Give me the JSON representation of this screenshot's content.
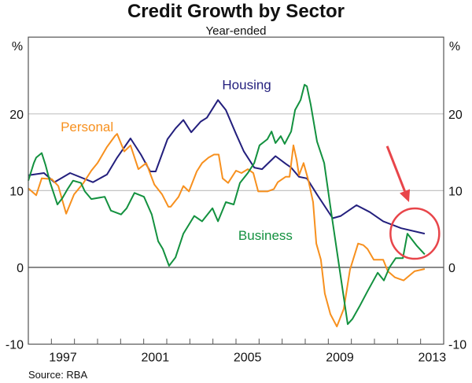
{
  "chart_data": {
    "type": "line",
    "title": "Credit Growth by Sector",
    "subtitle": "Year-ended",
    "ylabel_left": "%",
    "ylabel_right": "%",
    "source": "Source: RBA",
    "xlim": [
      1996,
      2014
    ],
    "ylim": [
      -10,
      30
    ],
    "yticks": [
      -10,
      0,
      10,
      20
    ],
    "ytick_labels": [
      "-10",
      "0",
      "10",
      "20"
    ],
    "xtick_years": [
      1997,
      1998,
      1999,
      2000,
      2001,
      2002,
      2003,
      2004,
      2005,
      2006,
      2007,
      2008,
      2009,
      2010,
      2011,
      2012,
      2013
    ],
    "xlabels": [
      "1997",
      "2001",
      "2005",
      "2009",
      "2013"
    ],
    "grid": true,
    "series": [
      {
        "name": "Housing",
        "color": "#231f7d",
        "x": [
          1996.0,
          1996.68,
          1997.13,
          1997.81,
          1998.8,
          1999.41,
          1999.85,
          2000.43,
          2000.88,
          2001.28,
          2001.52,
          2002.03,
          2002.38,
          2002.72,
          2003.06,
          2003.47,
          2003.74,
          2004.22,
          2004.56,
          2005.0,
          2005.34,
          2005.79,
          2006.13,
          2006.71,
          2007.15,
          2007.39,
          2007.73,
          2008.07,
          2008.51,
          2009.19,
          2009.54,
          2010.22,
          2010.8,
          2011.38,
          2012.16,
          2013.18
        ],
        "y": [
          12.0,
          12.3,
          11.1,
          12.3,
          11.1,
          12.1,
          14.3,
          16.8,
          14.7,
          12.5,
          12.5,
          16.7,
          18.1,
          19.2,
          17.6,
          19.0,
          19.5,
          21.8,
          20.5,
          17.4,
          15.1,
          13.0,
          12.8,
          14.5,
          13.5,
          13.0,
          11.8,
          11.6,
          9.5,
          6.4,
          6.7,
          8.1,
          7.2,
          6.0,
          5.1,
          4.4
        ]
      },
      {
        "name": "Personal",
        "color": "#f7901e",
        "x": [
          1996.0,
          1996.34,
          1996.58,
          1997.02,
          1997.3,
          1997.64,
          1997.98,
          1998.39,
          1998.73,
          1999.0,
          1999.41,
          1999.75,
          1999.85,
          2000.16,
          2000.43,
          2000.77,
          2001.11,
          2001.46,
          2001.8,
          2002.07,
          2002.17,
          2002.51,
          2002.72,
          2002.96,
          2003.3,
          2003.53,
          2003.81,
          2004.05,
          2004.25,
          2004.42,
          2004.66,
          2005.0,
          2005.24,
          2005.51,
          2005.75,
          2005.96,
          2006.36,
          2006.64,
          2006.81,
          2007.15,
          2007.32,
          2007.49,
          2007.63,
          2007.73,
          2007.93,
          2008.14,
          2008.34,
          2008.48,
          2008.68,
          2008.85,
          2009.09,
          2009.37,
          2009.67,
          2009.94,
          2010.29,
          2010.52,
          2010.7,
          2010.97,
          2011.38,
          2011.58,
          2011.89,
          2012.26,
          2012.74,
          2013.18
        ],
        "y": [
          10.3,
          9.4,
          11.6,
          11.5,
          10.6,
          7.0,
          9.5,
          11.0,
          12.6,
          13.6,
          15.7,
          17.1,
          17.4,
          15.1,
          15.9,
          12.8,
          13.6,
          10.8,
          9.5,
          7.9,
          7.9,
          9.2,
          10.6,
          9.9,
          12.5,
          13.6,
          14.3,
          14.7,
          14.7,
          11.6,
          11.0,
          12.6,
          12.3,
          12.8,
          12.3,
          9.9,
          9.9,
          10.2,
          11.1,
          11.8,
          11.8,
          15.9,
          14.0,
          12.0,
          13.6,
          11.3,
          8.5,
          3.1,
          1.0,
          -3.4,
          -6.1,
          -7.7,
          -5.4,
          -0.3,
          3.1,
          2.9,
          2.4,
          1.0,
          1.0,
          -0.5,
          -1.3,
          -1.7,
          -0.5,
          -0.2
        ]
      },
      {
        "name": "Business",
        "color": "#13913f",
        "x": [
          1996.0,
          1996.24,
          1996.34,
          1996.58,
          1996.75,
          1996.95,
          1997.26,
          1997.47,
          1997.7,
          1997.94,
          1998.28,
          1998.45,
          1998.73,
          1999.31,
          1999.58,
          2000.02,
          2000.26,
          2000.6,
          2001.01,
          2001.35,
          2001.63,
          2001.83,
          2002.1,
          2002.38,
          2002.72,
          2003.19,
          2003.53,
          2003.98,
          2004.22,
          2004.56,
          2004.9,
          2005.17,
          2005.51,
          2005.79,
          2006.02,
          2006.36,
          2006.54,
          2006.71,
          2006.94,
          2007.11,
          2007.39,
          2007.56,
          2007.8,
          2007.97,
          2008.07,
          2008.24,
          2008.51,
          2008.82,
          2009.09,
          2009.43,
          2009.84,
          2010.05,
          2010.35,
          2010.7,
          2011.14,
          2011.41,
          2011.65,
          2011.92,
          2012.23,
          2012.43,
          2012.84,
          2013.18
        ],
        "y": [
          11.3,
          13.6,
          14.3,
          14.9,
          13.3,
          11.0,
          8.2,
          9.0,
          10.2,
          11.3,
          11.0,
          9.9,
          8.9,
          9.2,
          7.4,
          6.9,
          7.7,
          9.7,
          9.2,
          6.9,
          3.4,
          2.4,
          0.2,
          1.3,
          4.4,
          6.7,
          6.0,
          7.7,
          6.0,
          8.5,
          8.2,
          11.0,
          12.3,
          13.6,
          15.9,
          16.7,
          17.7,
          16.2,
          17.1,
          16.1,
          17.7,
          20.5,
          21.8,
          23.8,
          23.6,
          21.2,
          16.4,
          13.6,
          7.9,
          1.0,
          -7.4,
          -6.7,
          -5.1,
          -3.1,
          -0.7,
          -1.7,
          0.0,
          1.2,
          1.2,
          4.4,
          2.8,
          1.7
        ]
      }
    ],
    "series_labels": [
      {
        "text": "Housing",
        "x": 2004.4,
        "y": 23.2
      },
      {
        "text": "Personal",
        "x": 1997.4,
        "y": 17.7
      },
      {
        "text": "Business",
        "x": 2005.1,
        "y": 3.6
      }
    ],
    "annotations": [
      {
        "type": "circle",
        "color": "#e8454a",
        "x": 2012.75,
        "y": 4.4
      },
      {
        "type": "arrow",
        "color": "#e8454a",
        "from": [
          2011.55,
          15.8
        ],
        "to": [
          2012.5,
          8.5
        ]
      }
    ]
  }
}
